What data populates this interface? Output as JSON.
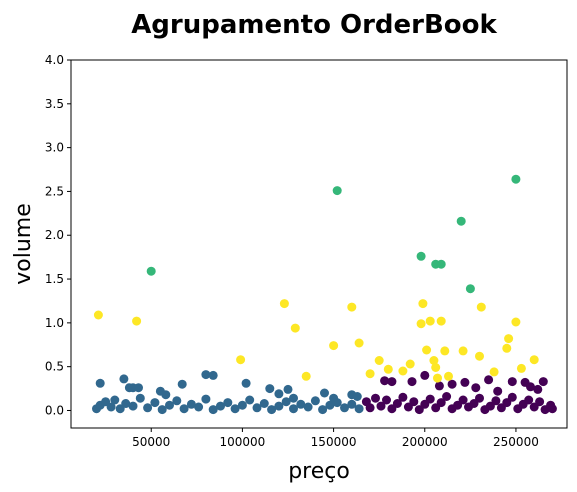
{
  "chart_data": {
    "type": "scatter",
    "title": "Agrupamento OrderBook",
    "xlabel": "preço",
    "ylabel": "volume",
    "xlim": [
      6000,
      278000
    ],
    "ylim": [
      -0.2,
      4.0
    ],
    "x_ticks": [
      50000,
      100000,
      150000,
      200000,
      250000
    ],
    "x_tick_labels": [
      "50000",
      "100000",
      "150000",
      "200000",
      "250000"
    ],
    "y_ticks": [
      0.0,
      0.5,
      1.0,
      1.5,
      2.0,
      2.5,
      3.0,
      3.5,
      4.0
    ],
    "y_tick_labels": [
      "0.0",
      "0.5",
      "1.0",
      "1.5",
      "2.0",
      "2.5",
      "3.0",
      "3.5",
      "4.0"
    ],
    "grid": false,
    "legend": "none",
    "series": [
      {
        "color": "#31688e",
        "points": [
          [
            22000,
            0.31
          ],
          [
            35000,
            0.36
          ],
          [
            38000,
            0.26
          ],
          [
            40000,
            0.26
          ],
          [
            43000,
            0.26
          ],
          [
            55000,
            0.22
          ],
          [
            58000,
            0.18
          ],
          [
            67000,
            0.3
          ],
          [
            80000,
            0.41
          ],
          [
            84000,
            0.4
          ],
          [
            102000,
            0.31
          ],
          [
            115000,
            0.25
          ],
          [
            120000,
            0.19
          ],
          [
            125000,
            0.24
          ],
          [
            128000,
            0.14
          ],
          [
            145000,
            0.2
          ],
          [
            150000,
            0.14
          ],
          [
            160000,
            0.18
          ],
          [
            163000,
            0.16
          ],
          [
            20000,
            0.02
          ],
          [
            22000,
            0.06
          ],
          [
            25000,
            0.1
          ],
          [
            28000,
            0.04
          ],
          [
            30000,
            0.12
          ],
          [
            33000,
            0.02
          ],
          [
            36000,
            0.08
          ],
          [
            40000,
            0.05
          ],
          [
            44000,
            0.14
          ],
          [
            48000,
            0.03
          ],
          [
            52000,
            0.09
          ],
          [
            56000,
            0.01
          ],
          [
            60000,
            0.06
          ],
          [
            64000,
            0.11
          ],
          [
            68000,
            0.02
          ],
          [
            72000,
            0.07
          ],
          [
            76000,
            0.04
          ],
          [
            80000,
            0.13
          ],
          [
            84000,
            0.01
          ],
          [
            88000,
            0.05
          ],
          [
            92000,
            0.09
          ],
          [
            96000,
            0.02
          ],
          [
            100000,
            0.06
          ],
          [
            104000,
            0.12
          ],
          [
            108000,
            0.03
          ],
          [
            112000,
            0.08
          ],
          [
            116000,
            0.01
          ],
          [
            120000,
            0.05
          ],
          [
            124000,
            0.1
          ],
          [
            128000,
            0.02
          ],
          [
            132000,
            0.07
          ],
          [
            136000,
            0.04
          ],
          [
            140000,
            0.11
          ],
          [
            144000,
            0.01
          ],
          [
            148000,
            0.06
          ],
          [
            152000,
            0.09
          ],
          [
            156000,
            0.03
          ],
          [
            160000,
            0.07
          ],
          [
            164000,
            0.02
          ]
        ]
      },
      {
        "color": "#440154",
        "points": [
          [
            178000,
            0.34
          ],
          [
            182000,
            0.33
          ],
          [
            193000,
            0.33
          ],
          [
            200000,
            0.4
          ],
          [
            208000,
            0.28
          ],
          [
            215000,
            0.3
          ],
          [
            222000,
            0.32
          ],
          [
            228000,
            0.26
          ],
          [
            235000,
            0.35
          ],
          [
            240000,
            0.22
          ],
          [
            248000,
            0.33
          ],
          [
            255000,
            0.32
          ],
          [
            258000,
            0.27
          ],
          [
            262000,
            0.24
          ],
          [
            265000,
            0.33
          ],
          [
            168000,
            0.1
          ],
          [
            170000,
            0.03
          ],
          [
            173000,
            0.14
          ],
          [
            176000,
            0.05
          ],
          [
            179000,
            0.12
          ],
          [
            182000,
            0.02
          ],
          [
            185000,
            0.08
          ],
          [
            188000,
            0.15
          ],
          [
            191000,
            0.04
          ],
          [
            194000,
            0.1
          ],
          [
            197000,
            0.01
          ],
          [
            200000,
            0.07
          ],
          [
            203000,
            0.13
          ],
          [
            206000,
            0.03
          ],
          [
            209000,
            0.09
          ],
          [
            212000,
            0.16
          ],
          [
            215000,
            0.02
          ],
          [
            218000,
            0.06
          ],
          [
            221000,
            0.12
          ],
          [
            224000,
            0.04
          ],
          [
            227000,
            0.08
          ],
          [
            230000,
            0.14
          ],
          [
            233000,
            0.01
          ],
          [
            236000,
            0.05
          ],
          [
            239000,
            0.11
          ],
          [
            242000,
            0.03
          ],
          [
            245000,
            0.09
          ],
          [
            248000,
            0.15
          ],
          [
            251000,
            0.02
          ],
          [
            254000,
            0.07
          ],
          [
            257000,
            0.12
          ],
          [
            260000,
            0.04
          ],
          [
            263000,
            0.1
          ],
          [
            266000,
            0.01
          ],
          [
            269000,
            0.06
          ],
          [
            270000,
            0.02
          ]
        ]
      },
      {
        "color": "#35b779",
        "points": [
          [
            50000,
            1.59
          ],
          [
            152000,
            2.51
          ],
          [
            198000,
            1.76
          ],
          [
            206000,
            1.67
          ],
          [
            209000,
            1.67
          ],
          [
            220000,
            2.16
          ],
          [
            225000,
            1.39
          ],
          [
            250000,
            2.64
          ]
        ]
      },
      {
        "color": "#fde725",
        "points": [
          [
            21000,
            1.09
          ],
          [
            42000,
            1.02
          ],
          [
            99000,
            0.58
          ],
          [
            123000,
            1.22
          ],
          [
            129000,
            0.94
          ],
          [
            135000,
            0.39
          ],
          [
            150000,
            0.74
          ],
          [
            160000,
            1.18
          ],
          [
            164000,
            0.77
          ],
          [
            170000,
            0.42
          ],
          [
            175000,
            0.57
          ],
          [
            180000,
            0.47
          ],
          [
            188000,
            0.45
          ],
          [
            192000,
            0.53
          ],
          [
            198000,
            0.99
          ],
          [
            199000,
            1.22
          ],
          [
            201000,
            0.69
          ],
          [
            203000,
            1.02
          ],
          [
            205000,
            0.57
          ],
          [
            206000,
            0.49
          ],
          [
            207000,
            0.37
          ],
          [
            209000,
            1.02
          ],
          [
            211000,
            0.68
          ],
          [
            213000,
            0.39
          ],
          [
            221000,
            0.68
          ],
          [
            230000,
            0.62
          ],
          [
            231000,
            1.18
          ],
          [
            238000,
            0.44
          ],
          [
            245000,
            0.71
          ],
          [
            246000,
            0.82
          ],
          [
            250000,
            1.01
          ],
          [
            253000,
            0.48
          ],
          [
            260000,
            0.58
          ]
        ]
      }
    ]
  }
}
